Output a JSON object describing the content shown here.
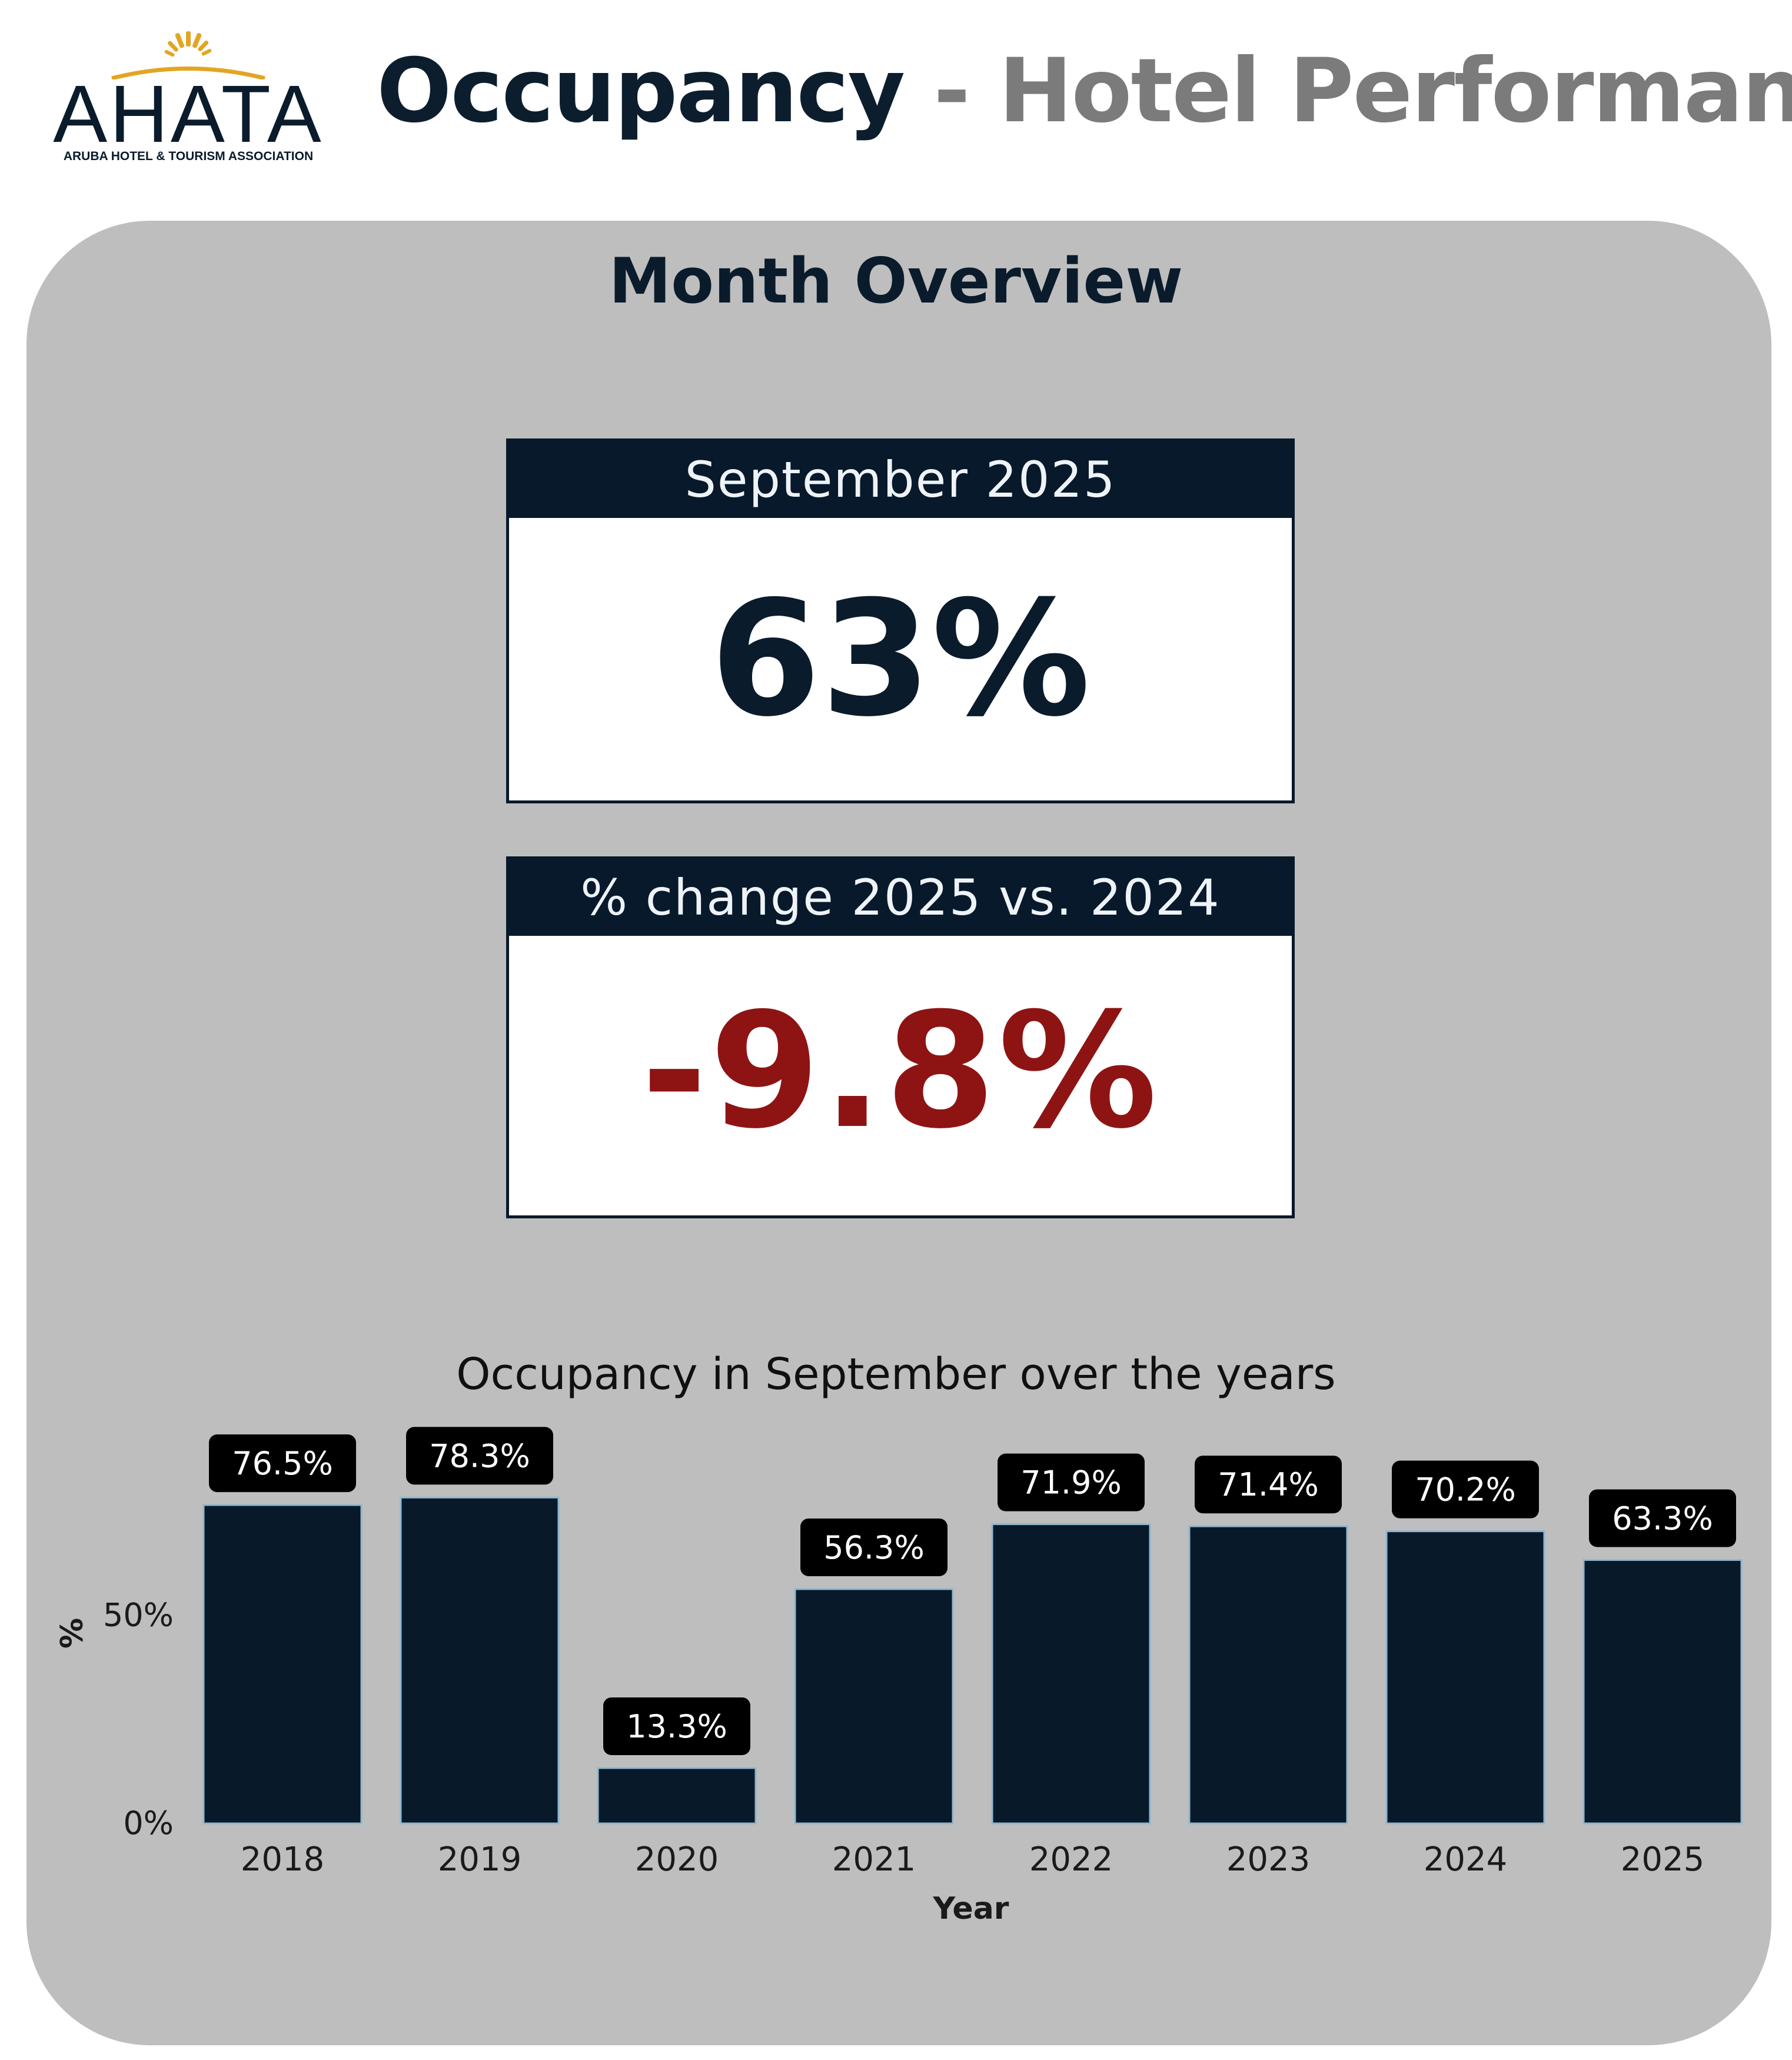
{
  "header": {
    "logo_word": "AHATA",
    "logo_subtitle": "ARUBA HOTEL & TOURISM ASSOCIATION",
    "title_main": "Occupancy",
    "title_rest": " - Hotel Performance S"
  },
  "overview": {
    "title": "Month Overview",
    "current": {
      "label": "September 2025",
      "value": "63%"
    },
    "change": {
      "label": "% change 2025 vs. 2024",
      "value": "-9.8%"
    }
  },
  "colors": {
    "navy": "#07192a",
    "panel_grey": "#bebebe",
    "negative_red": "#8e1414",
    "logo_gold": "#e2a523"
  },
  "chart_data": {
    "type": "bar",
    "title": "Occupancy in September over the years",
    "xlabel": "Year",
    "ylabel": "%",
    "categories": [
      "2018",
      "2019",
      "2020",
      "2021",
      "2022",
      "2023",
      "2024",
      "2025"
    ],
    "values": [
      76.5,
      78.3,
      13.3,
      56.3,
      71.9,
      71.4,
      70.2,
      63.3
    ],
    "data_labels": [
      "76.5%",
      "78.3%",
      "13.3%",
      "56.3%",
      "71.9%",
      "71.4%",
      "70.2%",
      "63.3%"
    ],
    "yticks": [
      0,
      50
    ],
    "ytick_labels": [
      "0%",
      "50%"
    ],
    "ylim": [
      0,
      100
    ],
    "grid": false,
    "legend": "none"
  }
}
